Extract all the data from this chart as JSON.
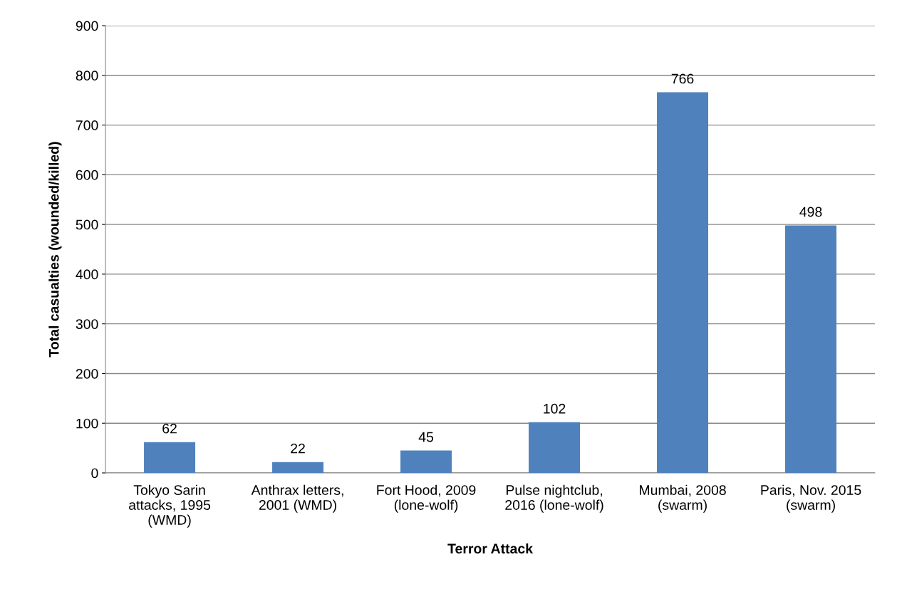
{
  "chart_data": {
    "type": "bar",
    "xlabel": "Terror Attack",
    "ylabel": "Total casualties (wounded/killed)",
    "categories": [
      "Tokyo Sarin\nattacks, 1995\n(WMD)",
      "Anthrax letters,\n2001 (WMD)",
      "Fort Hood, 2009\n(lone-wolf)",
      "Pulse nightclub,\n2016 (lone-wolf)",
      "Mumbai, 2008\n(swarm)",
      "Paris, Nov. 2015\n(swarm)"
    ],
    "values": [
      62,
      22,
      45,
      102,
      766,
      498
    ],
    "color": "#4f81bd",
    "ylim": [
      0,
      900
    ],
    "yticks": [
      0,
      100,
      200,
      300,
      400,
      500,
      600,
      700,
      800,
      900
    ],
    "grid": "y",
    "data_labels": true,
    "legend": false
  }
}
